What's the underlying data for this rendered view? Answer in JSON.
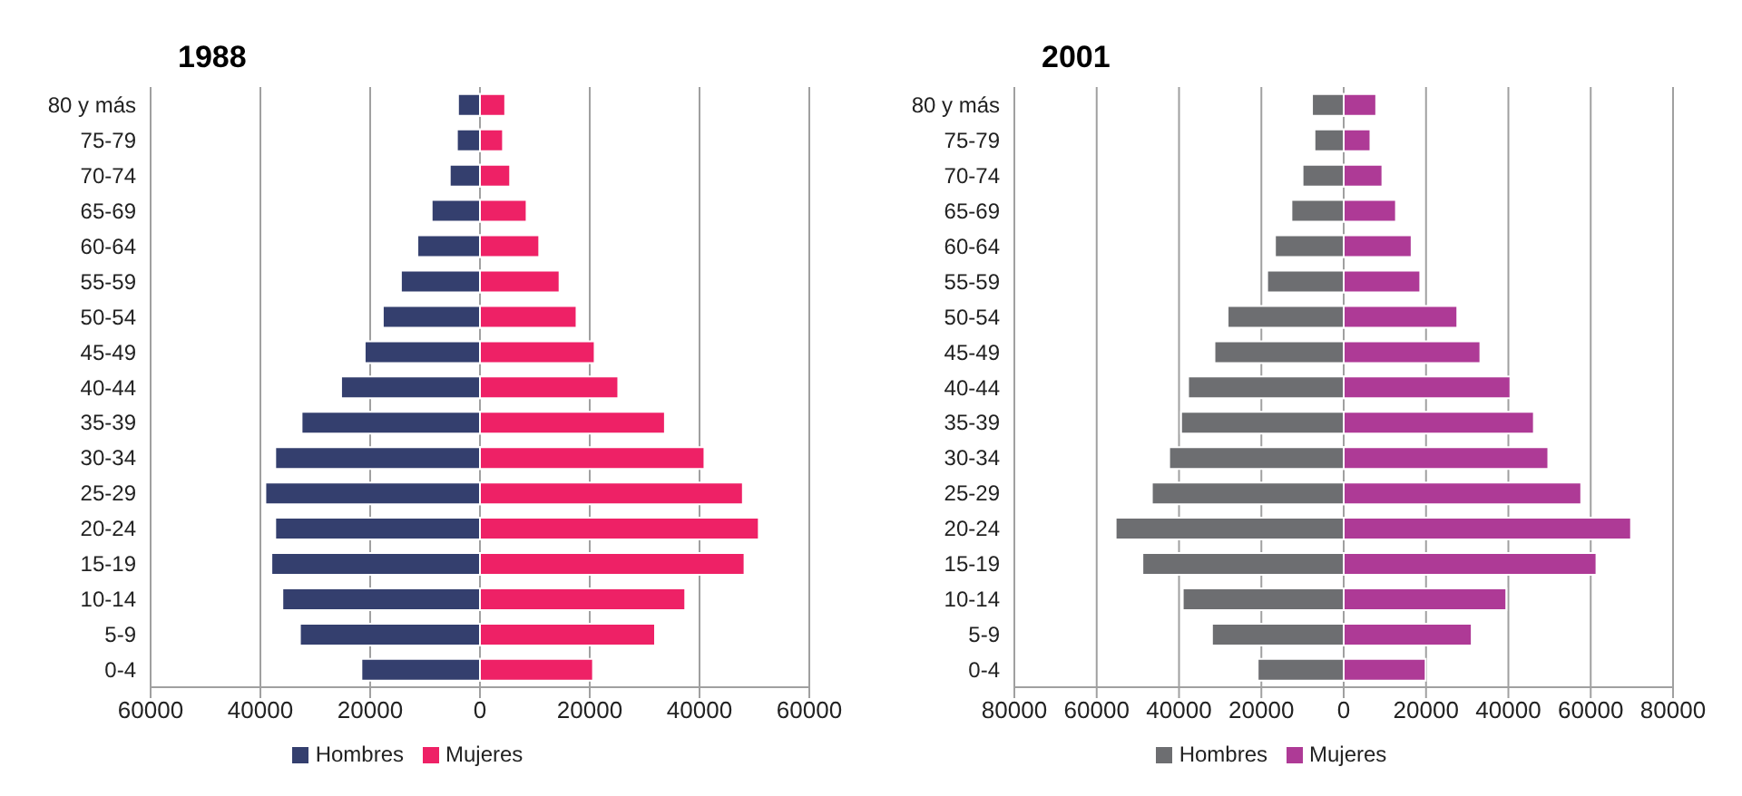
{
  "chart_data": [
    {
      "type": "bar",
      "title": "1988",
      "orientation": "horizontal",
      "stacked": true,
      "categories": [
        "80 y más",
        "75-79",
        "70-74",
        "65-69",
        "60-64",
        "55-59",
        "50-54",
        "45-49",
        "40-44",
        "35-39",
        "30-34",
        "25-29",
        "20-24",
        "15-19",
        "10-14",
        "5-9",
        "0-4"
      ],
      "series": [
        {
          "name": "Hombres",
          "color": "#343f6e",
          "values": [
            -4000,
            -4200,
            -5500,
            -8800,
            -11400,
            -14400,
            -17700,
            -21000,
            -25300,
            -32500,
            -37300,
            -39100,
            -37300,
            -38000,
            -36000,
            -32800,
            -21600
          ]
        },
        {
          "name": "Mujeres",
          "color": "#ee2166",
          "values": [
            4600,
            4200,
            5500,
            8500,
            10800,
            14500,
            17600,
            20900,
            25200,
            33700,
            40900,
            47900,
            50800,
            48200,
            37400,
            31900,
            20600
          ]
        }
      ],
      "xlim": [
        -60000,
        60000
      ],
      "xticks": [
        {
          "value": -60000,
          "label": "60000"
        },
        {
          "value": -40000,
          "label": "40000"
        },
        {
          "value": -20000,
          "label": "20000"
        },
        0,
        20000,
        40000,
        60000
      ],
      "grid": "x",
      "legend": "bottom"
    },
    {
      "type": "bar",
      "title": "2001",
      "orientation": "horizontal",
      "stacked": true,
      "categories": [
        "80 y más",
        "75-79",
        "70-74",
        "65-69",
        "60-64",
        "55-59",
        "50-54",
        "45-49",
        "40-44",
        "35-39",
        "30-34",
        "25-29",
        "20-24",
        "15-19",
        "10-14",
        "5-9",
        "0-4"
      ],
      "series": [
        {
          "name": "Hombres",
          "color": "#6d6e71",
          "values": [
            -7700,
            -7100,
            -10000,
            -12700,
            -16700,
            -18600,
            -28200,
            -31400,
            -37800,
            -39500,
            -42400,
            -46600,
            -55400,
            -48900,
            -39100,
            -32000,
            -20900
          ]
        },
        {
          "name": "Mujeres",
          "color": "#ae3a96",
          "values": [
            7900,
            6500,
            9400,
            12700,
            16500,
            18600,
            27600,
            33200,
            40500,
            46200,
            49700,
            57700,
            69800,
            61400,
            39500,
            31100,
            19900
          ]
        }
      ],
      "xlim": [
        -80000,
        80000
      ],
      "xticks": [
        {
          "value": -80000,
          "label": "80000"
        },
        {
          "value": -60000,
          "label": "60000"
        },
        {
          "value": -40000,
          "label": "40000"
        },
        {
          "value": -20000,
          "label": "20000"
        },
        0,
        20000,
        40000,
        60000,
        80000
      ],
      "grid": "x",
      "legend": "bottom"
    }
  ]
}
